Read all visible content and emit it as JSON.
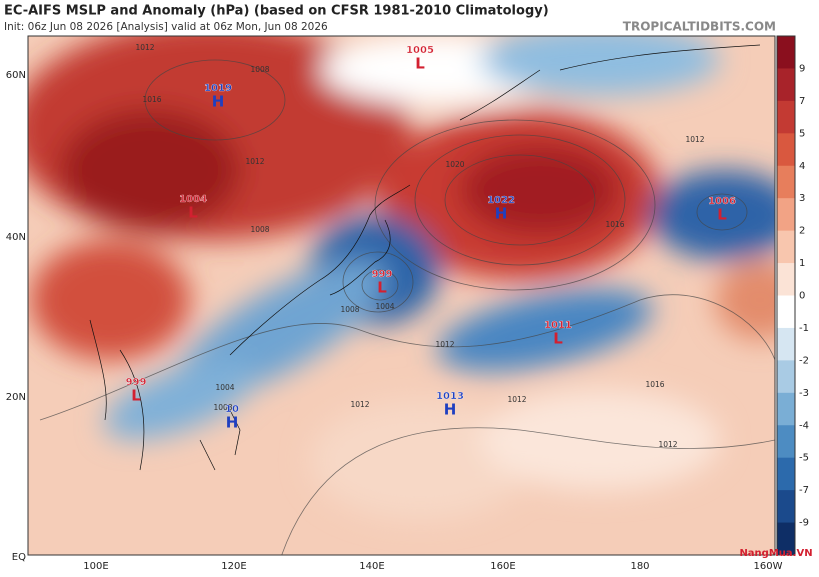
{
  "header": {
    "title": "EC-AIFS MSLP and Anomaly (hPa) (based on CFSR 1981-2010 Climatology)",
    "subtitle": "Init: 06z Jun 08 2026   [Analysis]   valid at 06z Mon, Jun 08 2026",
    "site": "TROPICALTIDBITS.COM"
  },
  "axes": {
    "lat_labels": [
      "60N",
      "40N",
      "20N",
      "EQ"
    ],
    "lon_labels": [
      "100E",
      "120E",
      "140E",
      "160E",
      "180",
      "160W"
    ]
  },
  "colorbar": {
    "ticks": [
      9,
      7,
      5,
      4,
      3,
      2,
      1,
      0,
      -1,
      -2,
      -3,
      -4,
      -5,
      -7,
      -9
    ],
    "colors": [
      "#8a0f1e",
      "#a8232a",
      "#c33a33",
      "#d9583f",
      "#e77e5c",
      "#f2a385",
      "#f8c6ae",
      "#fbe3d6",
      "#ffffff",
      "#d6e6f2",
      "#a9cbe4",
      "#7aaed5",
      "#4d8cc2",
      "#2c6aac",
      "#1b4a8c",
      "#0e2e66"
    ]
  },
  "systems": [
    {
      "kind": "H",
      "value": "1019",
      "color": "#1f3fc0"
    },
    {
      "kind": "L",
      "value": "1005",
      "color": "#d32030"
    },
    {
      "kind": "L",
      "value": "1004",
      "color": "#d32030"
    },
    {
      "kind": "H",
      "value": "1022",
      "color": "#1f3fc0"
    },
    {
      "kind": "L",
      "value": "1006",
      "color": "#d32030"
    },
    {
      "kind": "L",
      "value": "999",
      "color": "#d32030"
    },
    {
      "kind": "L",
      "value": "1011",
      "color": "#d32030"
    },
    {
      "kind": "L",
      "value": "999",
      "color": "#d32030"
    },
    {
      "kind": "H",
      "value": "1013",
      "color": "#1f3fc0"
    },
    {
      "kind": "H",
      "value": "10",
      "color": "#1f3fc0"
    }
  ],
  "isobar_labels": [
    "1012",
    "1016",
    "1008",
    "1012",
    "1008",
    "1020",
    "1016",
    "1012",
    "1008",
    "1004",
    "1012",
    "1012",
    "1016",
    "1012",
    "1012",
    "1008",
    "1004"
  ],
  "watermark": "NangMua.VN"
}
